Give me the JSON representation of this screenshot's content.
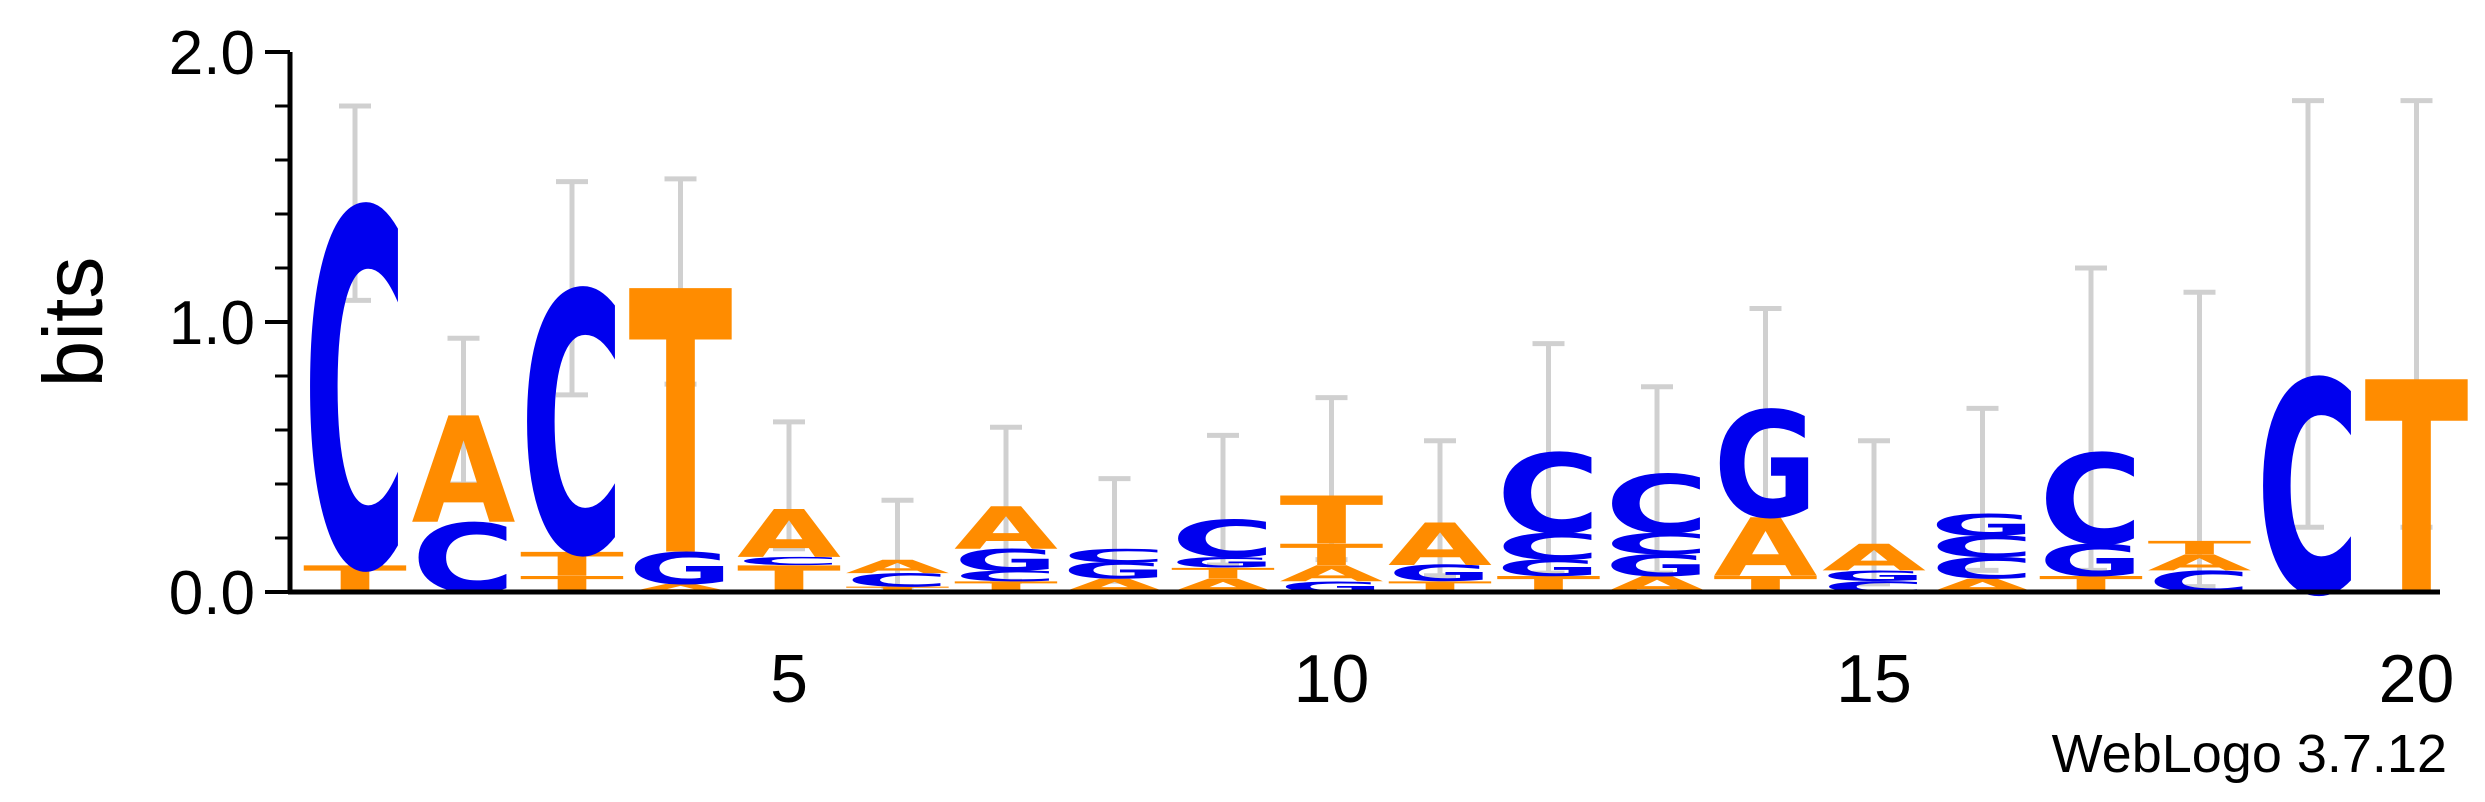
{
  "chart_data": {
    "type": "sequence_logo",
    "ylabel": "bits",
    "ylim": [
      0,
      2
    ],
    "y_ticks": [
      {
        "value": 0,
        "label": "0.0"
      },
      {
        "value": 1,
        "label": "1.0"
      },
      {
        "value": 2,
        "label": "2.0"
      }
    ],
    "x_ticks": [
      5,
      10,
      15,
      20
    ],
    "credit": "WebLogo 3.7.12",
    "colors": {
      "C": "#0000ee",
      "G": "#0000ee",
      "A": "#ff8c00",
      "T": "#ff8c00",
      "error_bar": "#d0d0d0"
    },
    "positions": [
      {
        "pos": 1,
        "letters": [
          [
            "T",
            0.1
          ],
          [
            "C",
            1.34
          ]
        ],
        "error": [
          1.08,
          1.8
        ]
      },
      {
        "pos": 2,
        "letters": [
          [
            "C",
            0.26
          ],
          [
            "A",
            0.4
          ]
        ],
        "error": [
          0.4,
          0.94
        ]
      },
      {
        "pos": 3,
        "letters": [
          [
            "T",
            0.06
          ],
          [
            "T",
            0.09
          ],
          [
            "C",
            0.98
          ]
        ],
        "error": [
          0.73,
          1.52
        ]
      },
      {
        "pos": 4,
        "letters": [
          [
            "A",
            0.03
          ],
          [
            "G",
            0.12
          ],
          [
            "T",
            0.99
          ]
        ],
        "error": [
          0.77,
          1.53
        ]
      },
      {
        "pos": 5,
        "letters": [
          [
            "T",
            0.1
          ],
          [
            "C",
            0.03
          ],
          [
            "A",
            0.18
          ]
        ],
        "error": [
          0.16,
          0.63
        ]
      },
      {
        "pos": 6,
        "letters": [
          [
            "T",
            0.02
          ],
          [
            "C",
            0.05
          ],
          [
            "A",
            0.05
          ]
        ],
        "error": [
          0.02,
          0.34
        ]
      },
      {
        "pos": 7,
        "letters": [
          [
            "T",
            0.04
          ],
          [
            "C",
            0.04
          ],
          [
            "G",
            0.08
          ],
          [
            "A",
            0.16
          ]
        ],
        "error": [
          0.04,
          0.61
        ]
      },
      {
        "pos": 8,
        "letters": [
          [
            "A",
            0.05
          ],
          [
            "G",
            0.06
          ],
          [
            "C",
            0.05
          ]
        ],
        "error": [
          0.04,
          0.42
        ]
      },
      {
        "pos": 9,
        "letters": [
          [
            "A",
            0.05
          ],
          [
            "T",
            0.04
          ],
          [
            "G",
            0.04
          ],
          [
            "C",
            0.14
          ]
        ],
        "error": [
          0.1,
          0.58
        ]
      },
      {
        "pos": 10,
        "letters": [
          [
            "G",
            0.04
          ],
          [
            "A",
            0.06
          ],
          [
            "T",
            0.08
          ],
          [
            "T",
            0.18
          ]
        ],
        "error": [
          0.12,
          0.72
        ]
      },
      {
        "pos": 11,
        "letters": [
          [
            "T",
            0.04
          ],
          [
            "G",
            0.06
          ],
          [
            "A",
            0.16
          ]
        ],
        "error": [
          0.06,
          0.56
        ]
      },
      {
        "pos": 12,
        "letters": [
          [
            "T",
            0.06
          ],
          [
            "G",
            0.06
          ],
          [
            "C",
            0.1
          ],
          [
            "C",
            0.3
          ]
        ],
        "error": [
          0.07,
          0.92
        ]
      },
      {
        "pos": 13,
        "letters": [
          [
            "A",
            0.06
          ],
          [
            "G",
            0.08
          ],
          [
            "C",
            0.08
          ],
          [
            "C",
            0.22
          ]
        ],
        "error": [
          0.07,
          0.76
        ]
      },
      {
        "pos": 14,
        "letters": [
          [
            "T",
            0.06
          ],
          [
            "A",
            0.22
          ],
          [
            "G",
            0.4
          ]
        ],
        "error": [
          0.3,
          1.05
        ]
      },
      {
        "pos": 15,
        "letters": [
          [
            "C",
            0.04
          ],
          [
            "G",
            0.04
          ],
          [
            "A",
            0.1
          ]
        ],
        "error": [
          0.03,
          0.56
        ]
      },
      {
        "pos": 16,
        "letters": [
          [
            "A",
            0.05
          ],
          [
            "C",
            0.08
          ],
          [
            "C",
            0.08
          ],
          [
            "G",
            0.08
          ]
        ],
        "error": [
          0.08,
          0.68
        ]
      },
      {
        "pos": 17,
        "letters": [
          [
            "T",
            0.06
          ],
          [
            "G",
            0.12
          ],
          [
            "C",
            0.34
          ]
        ],
        "error": [
          0.08,
          1.2
        ]
      },
      {
        "pos": 18,
        "letters": [
          [
            "C",
            0.08
          ],
          [
            "A",
            0.06
          ],
          [
            "T",
            0.05
          ]
        ],
        "error": [
          0.02,
          1.11
        ]
      },
      {
        "pos": 19,
        "letters": [
          [
            "C",
            0.8
          ]
        ],
        "error": [
          0.24,
          1.82
        ]
      },
      {
        "pos": 20,
        "letters": [
          [
            "T",
            0.8
          ]
        ],
        "error": [
          0.24,
          1.82
        ]
      }
    ]
  }
}
